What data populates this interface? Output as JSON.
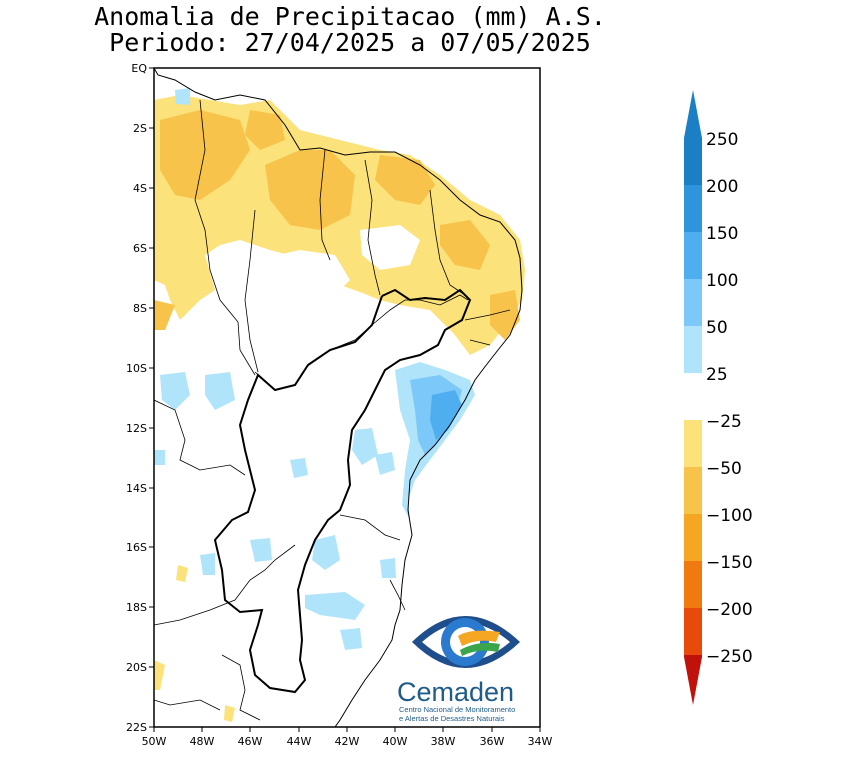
{
  "title": {
    "line1": "Anomalia de Precipitacao (mm) A.S.",
    "line2": "Periodo: 27/04/2025 a 07/05/2025"
  },
  "axes": {
    "y_ticks": [
      "EQ",
      "2S",
      "4S",
      "6S",
      "8S",
      "10S",
      "12S",
      "14S",
      "16S",
      "18S",
      "20S",
      "22S"
    ],
    "x_ticks": [
      "50W",
      "48W",
      "46W",
      "44W",
      "42W",
      "40W",
      "38W",
      "36W",
      "34W"
    ],
    "lon_range": [
      -50,
      -34
    ],
    "lat_range": [
      -22,
      0
    ]
  },
  "colorbar": {
    "labels": [
      "250",
      "200",
      "150",
      "100",
      "50",
      "25",
      "−25",
      "−50",
      "−100",
      "−150",
      "−200",
      "−250"
    ],
    "colors": {
      "blue_250": "#1a7fc4",
      "blue_200": "#2e95dc",
      "blue_150": "#4eaef0",
      "blue_100": "#7cc8f8",
      "blue_50": "#b0e4fb",
      "white": "#ffffff",
      "yellow_25": "#fbe27a",
      "yellow_50": "#f8c34a",
      "orange_100": "#f5a623",
      "orange_150": "#f07a10",
      "red_200": "#e84a0c",
      "red_250": "#c0120a"
    }
  },
  "logo": {
    "name": "Cemaden",
    "line1": "Centro Nacional de Monitoramento",
    "line2": "e Alertas de Desastres Naturais"
  }
}
